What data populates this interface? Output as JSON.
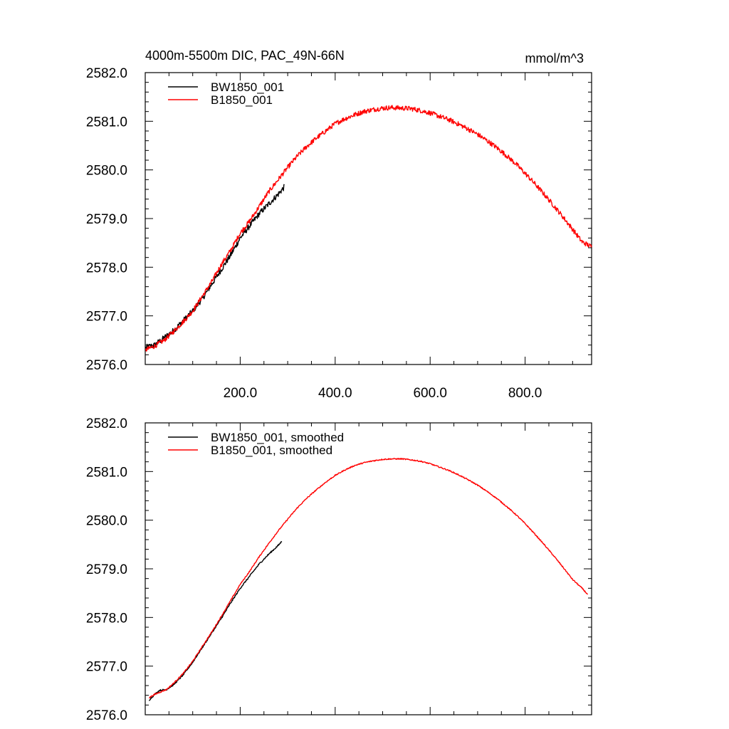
{
  "chart_data": [
    {
      "type": "line",
      "title_left": "4000m-5500m DIC, PAC_49N-66N",
      "title_right": "mmol/m^3",
      "xlim": [
        0,
        940
      ],
      "ylim": [
        2576.0,
        2582.0
      ],
      "xticks": [
        200,
        400,
        600,
        800
      ],
      "xtick_labels": [
        "200.0",
        "400.0",
        "600.0",
        "800.0"
      ],
      "yticks": [
        2576,
        2577,
        2578,
        2579,
        2580,
        2581,
        2582
      ],
      "ytick_labels": [
        "2576.0",
        "2577.0",
        "2578.0",
        "2579.0",
        "2580.0",
        "2581.0",
        "2582.0"
      ],
      "legend_position": "top-left",
      "series": [
        {
          "name": "BW1850_001",
          "color": "#000000",
          "x": [
            1,
            20,
            40,
            60,
            80,
            100,
            120,
            140,
            160,
            180,
            200,
            220,
            240,
            260,
            280,
            293
          ],
          "y": [
            2576.35,
            2576.4,
            2576.55,
            2576.7,
            2576.9,
            2577.1,
            2577.35,
            2577.65,
            2577.95,
            2578.25,
            2578.6,
            2578.85,
            2579.1,
            2579.3,
            2579.5,
            2579.65
          ],
          "noise": 0.06
        },
        {
          "name": "B1850_001",
          "color": "#ff0000",
          "x": [
            1,
            20,
            40,
            60,
            80,
            100,
            120,
            140,
            160,
            180,
            200,
            220,
            240,
            260,
            280,
            300,
            320,
            340,
            360,
            380,
            400,
            420,
            440,
            460,
            480,
            500,
            520,
            540,
            560,
            580,
            600,
            620,
            640,
            660,
            680,
            700,
            720,
            740,
            760,
            780,
            800,
            820,
            840,
            860,
            880,
            900,
            920,
            940
          ],
          "y": [
            2576.3,
            2576.38,
            2576.5,
            2576.68,
            2576.88,
            2577.1,
            2577.4,
            2577.7,
            2578.05,
            2578.35,
            2578.7,
            2578.95,
            2579.25,
            2579.55,
            2579.8,
            2580.05,
            2580.28,
            2580.48,
            2580.65,
            2580.8,
            2580.95,
            2581.05,
            2581.13,
            2581.2,
            2581.24,
            2581.27,
            2581.28,
            2581.27,
            2581.26,
            2581.22,
            2581.17,
            2581.1,
            2581.03,
            2580.94,
            2580.84,
            2580.73,
            2580.6,
            2580.46,
            2580.3,
            2580.13,
            2579.93,
            2579.72,
            2579.5,
            2579.27,
            2579.03,
            2578.78,
            2578.52,
            2578.42
          ],
          "noise": 0.05
        }
      ]
    },
    {
      "type": "line",
      "xlim": [
        0,
        940
      ],
      "ylim": [
        2576.0,
        2582.0
      ],
      "yticks": [
        2576,
        2577,
        2578,
        2579,
        2580,
        2581,
        2582
      ],
      "ytick_labels": [
        "2576.0",
        "2577.0",
        "2578.0",
        "2579.0",
        "2580.0",
        "2581.0",
        "2582.0"
      ],
      "legend_position": "top-left",
      "series": [
        {
          "name": "BW1850_001, smoothed",
          "color": "#000000",
          "x": [
            8,
            20,
            30,
            45,
            60,
            80,
            100,
            120,
            140,
            160,
            180,
            200,
            220,
            240,
            260,
            280,
            288
          ],
          "y": [
            2576.3,
            2576.42,
            2576.5,
            2576.52,
            2576.62,
            2576.82,
            2577.08,
            2577.38,
            2577.68,
            2577.98,
            2578.3,
            2578.6,
            2578.85,
            2579.1,
            2579.3,
            2579.48,
            2579.57
          ],
          "noise": 0.015
        },
        {
          "name": "B1850_001, smoothed",
          "color": "#ff0000",
          "x": [
            8,
            20,
            30,
            45,
            60,
            80,
            100,
            120,
            140,
            160,
            180,
            200,
            220,
            240,
            260,
            280,
            300,
            320,
            340,
            360,
            380,
            400,
            420,
            440,
            460,
            480,
            500,
            520,
            540,
            560,
            580,
            600,
            620,
            640,
            660,
            680,
            700,
            720,
            740,
            760,
            780,
            800,
            820,
            840,
            860,
            880,
            900,
            920,
            932
          ],
          "y": [
            2576.35,
            2576.42,
            2576.46,
            2576.52,
            2576.65,
            2576.85,
            2577.1,
            2577.4,
            2577.7,
            2578.02,
            2578.35,
            2578.68,
            2578.95,
            2579.25,
            2579.52,
            2579.78,
            2580.02,
            2580.25,
            2580.45,
            2580.62,
            2580.78,
            2580.92,
            2581.03,
            2581.12,
            2581.18,
            2581.22,
            2581.25,
            2581.26,
            2581.26,
            2581.24,
            2581.21,
            2581.16,
            2581.09,
            2581.02,
            2580.93,
            2580.83,
            2580.72,
            2580.59,
            2580.45,
            2580.29,
            2580.12,
            2579.93,
            2579.72,
            2579.5,
            2579.27,
            2579.03,
            2578.78,
            2578.6,
            2578.47
          ],
          "noise": 0.012
        }
      ]
    }
  ]
}
